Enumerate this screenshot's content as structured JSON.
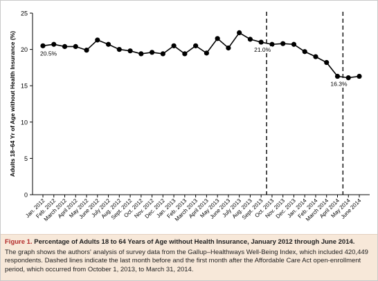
{
  "caption": {
    "label": "Figure 1.",
    "title": "Percentage of Adults 18 to 64 Years of Age without Health Insurance, January 2012 through June 2014.",
    "body": "The graph shows the authors' analysis of survey data from the Gallup–Healthways Well-Being Index, which included 420,449 respondents. Dashed lines indicate the last month before and the first month after the Affordable Care Act open-enrollment period, which occurred from October 1, 2013, to March 31, 2014."
  },
  "colors": {
    "line": "#000000",
    "caption_bg": "#f7e8d9",
    "caption_label": "#b22a2a"
  },
  "chart_data": {
    "type": "line",
    "title": "",
    "xlabel": "",
    "ylabel": "Adults 18–64 Yr of Age without Health Insurance (%)",
    "ylim": [
      0,
      25
    ],
    "yticks": [
      0,
      5,
      10,
      15,
      20,
      25
    ],
    "categories": [
      "Jan. 2012",
      "Feb. 2012",
      "March 2012",
      "April 2012",
      "May 2012",
      "June 2012",
      "July 2012",
      "Aug. 2012",
      "Sept. 2012",
      "Oct. 2012",
      "Nov. 2012",
      "Dec. 2012",
      "Jan. 2013",
      "Feb. 2013",
      "March 2013",
      "April 2013",
      "May 2013",
      "June 2013",
      "July 2013",
      "Aug. 2013",
      "Sept. 2013",
      "Oct. 2013",
      "Nov. 2013",
      "Dec. 2013",
      "Jan. 2014",
      "Feb. 2014",
      "March 2014",
      "April 2014",
      "May 2014",
      "June 2014"
    ],
    "values": [
      20.5,
      20.7,
      20.4,
      20.4,
      19.9,
      21.3,
      20.7,
      20.0,
      19.8,
      19.4,
      19.6,
      19.4,
      20.5,
      19.4,
      20.5,
      19.5,
      21.5,
      20.2,
      22.3,
      21.4,
      21.0,
      20.7,
      20.8,
      20.7,
      19.7,
      19.0,
      18.2,
      16.3,
      16.1,
      16.3
    ],
    "dashed_lines_after": [
      "Sept. 2013",
      "April 2014"
    ],
    "annotations": [
      {
        "category": "Jan. 2012",
        "text": "20.5%"
      },
      {
        "category": "Sept. 2013",
        "text": "21.0%"
      },
      {
        "category": "April 2014",
        "text": "16.3%"
      }
    ],
    "grid": false,
    "legend": "none"
  }
}
